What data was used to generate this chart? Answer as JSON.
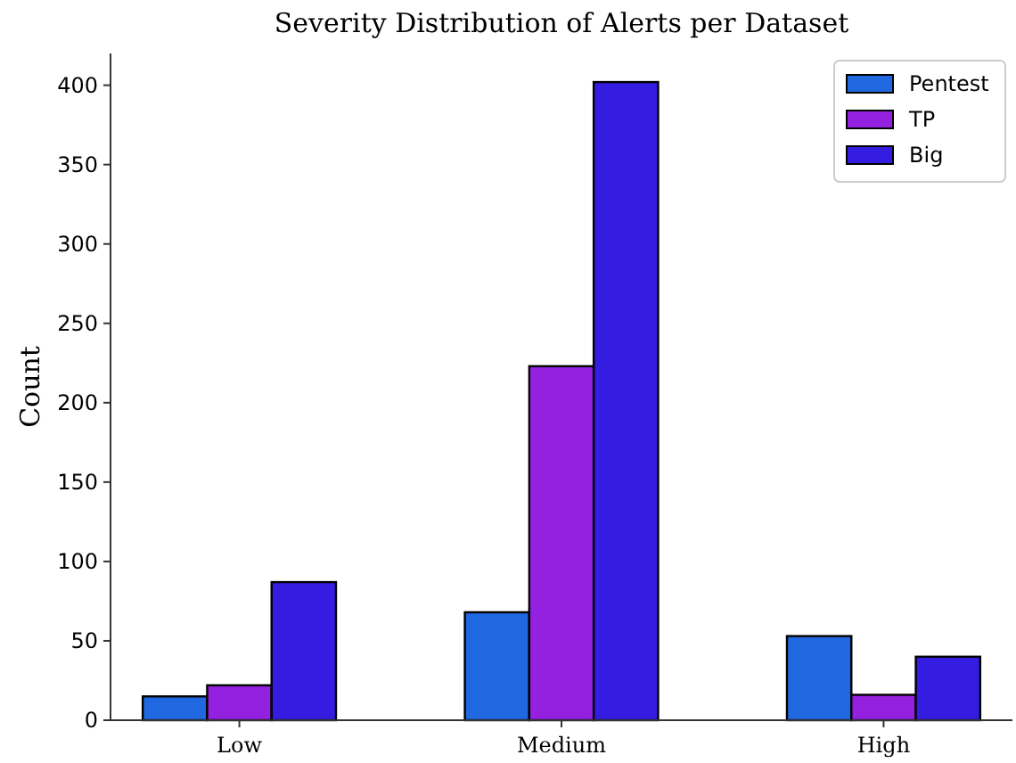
{
  "chart_data": {
    "type": "bar",
    "title": "Severity Distribution of Alerts per Dataset",
    "ylabel": "Count",
    "categories": [
      "Low",
      "Medium",
      "High"
    ],
    "series": [
      {
        "name": "Pentest",
        "color": "#1f68e0",
        "values": [
          15,
          68,
          53
        ]
      },
      {
        "name": "TP",
        "color": "#9420e0",
        "values": [
          22,
          223,
          16
        ]
      },
      {
        "name": "Big",
        "color": "#341de0",
        "values": [
          87,
          402,
          40
        ]
      }
    ],
    "ylim": [
      0,
      420
    ],
    "yticks": [
      0,
      50,
      100,
      150,
      200,
      250,
      300,
      350,
      400
    ],
    "legend": "top right",
    "grid": false
  }
}
